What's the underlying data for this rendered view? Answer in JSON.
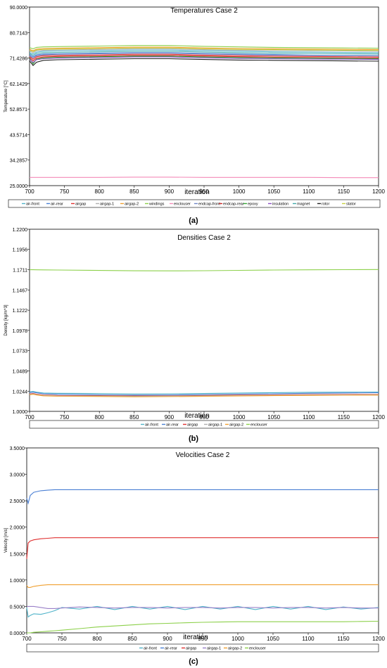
{
  "figure_labels": [
    "(a)",
    "(b)",
    "(c)"
  ],
  "chart_data": [
    {
      "type": "line",
      "title": "Temperatures Case 2",
      "xlabel": "iteration",
      "ylabel": "Temperature [°C]",
      "xlim": [
        700,
        1200
      ],
      "ylim": [
        25.0,
        90.0
      ],
      "x_ticks": [
        "700",
        "750",
        "800",
        "850",
        "900",
        "950",
        "1000",
        "1050",
        "1100",
        "1150",
        "1200"
      ],
      "y_ticks": [
        "25.0000",
        "34.2857",
        "43.5714",
        "52.8571",
        "62.1429",
        "71.4286",
        "80.7143",
        "90.0000"
      ],
      "legend_position": "bottom",
      "x": [
        700,
        705,
        710,
        720,
        740,
        800,
        850,
        900,
        950,
        1000,
        1050,
        1100,
        1150,
        1200
      ],
      "series": [
        {
          "name": "air-front",
          "color": "#4fb3c9",
          "values": [
            73.4,
            72.9,
            73.6,
            73.9,
            74.0,
            74.2,
            74.4,
            74.4,
            74.1,
            73.9,
            73.7,
            73.6,
            73.5,
            73.4
          ]
        },
        {
          "name": "air-rear",
          "color": "#4a7fd4",
          "values": [
            72.6,
            71.9,
            72.6,
            72.9,
            73.0,
            73.2,
            73.4,
            73.4,
            73.1,
            72.9,
            72.7,
            72.5,
            72.4,
            72.3
          ]
        },
        {
          "name": "airgap",
          "color": "#e03030",
          "values": [
            72.0,
            71.0,
            71.9,
            72.3,
            72.4,
            72.6,
            72.8,
            72.8,
            72.5,
            72.3,
            72.1,
            72.0,
            71.9,
            71.8
          ]
        },
        {
          "name": "airgap-1",
          "color": "#b0b0b0",
          "values": [
            74.0,
            73.4,
            74.1,
            74.3,
            74.4,
            74.6,
            74.8,
            74.8,
            74.5,
            74.3,
            74.2,
            74.1,
            74.0,
            73.9
          ]
        },
        {
          "name": "airgap-2",
          "color": "#f0a030",
          "values": [
            74.6,
            74.1,
            74.7,
            74.9,
            75.0,
            75.2,
            75.4,
            75.4,
            75.1,
            74.9,
            74.8,
            74.7,
            74.6,
            74.5
          ]
        },
        {
          "name": "windings",
          "color": "#8cd04a",
          "values": [
            75.2,
            74.8,
            75.3,
            75.5,
            75.6,
            75.8,
            76.0,
            76.0,
            75.7,
            75.5,
            75.3,
            75.2,
            75.1,
            75.0
          ]
        },
        {
          "name": "enclouser",
          "color": "#f48ab8",
          "values": [
            28.0,
            28.0,
            28.0,
            28.0,
            28.0,
            28.0,
            28.1,
            28.1,
            28.0,
            28.0,
            28.0,
            28.0,
            27.9,
            27.9
          ]
        },
        {
          "name": "endcap-front",
          "color": "#6f86c6",
          "values": [
            72.2,
            71.5,
            72.3,
            72.6,
            72.8,
            73.0,
            73.2,
            73.2,
            72.9,
            72.7,
            72.5,
            72.4,
            72.3,
            72.2
          ]
        },
        {
          "name": "endcap-rear",
          "color": "#cc2a2a",
          "values": [
            71.6,
            70.4,
            71.4,
            71.8,
            72.0,
            72.2,
            72.4,
            72.4,
            72.1,
            71.9,
            71.7,
            71.6,
            71.5,
            71.4
          ]
        },
        {
          "name": "epoxy",
          "color": "#34a834",
          "values": [
            71.4,
            69.3,
            71.0,
            71.5,
            71.7,
            71.9,
            72.1,
            72.1,
            71.8,
            71.6,
            71.5,
            71.4,
            71.3,
            71.2
          ]
        },
        {
          "name": "insulation",
          "color": "#8a4fc4",
          "values": [
            71.0,
            69.8,
            70.8,
            71.2,
            71.4,
            71.6,
            71.8,
            71.8,
            71.5,
            71.3,
            71.2,
            71.1,
            71.0,
            70.9
          ]
        },
        {
          "name": "magnet",
          "color": "#40a8a8",
          "values": [
            73.0,
            72.4,
            73.1,
            73.4,
            73.5,
            73.7,
            73.9,
            73.9,
            73.6,
            73.4,
            73.2,
            73.1,
            73.0,
            72.9
          ]
        },
        {
          "name": "rotor",
          "color": "#222222",
          "values": [
            70.4,
            68.7,
            69.9,
            70.6,
            70.8,
            71.0,
            71.2,
            71.2,
            70.9,
            70.7,
            70.6,
            70.5,
            70.4,
            70.3
          ]
        },
        {
          "name": "stator",
          "color": "#c8d040",
          "values": [
            74.3,
            73.8,
            74.4,
            74.6,
            74.7,
            74.9,
            75.1,
            75.1,
            74.8,
            74.6,
            74.5,
            74.4,
            74.3,
            74.2
          ]
        }
      ]
    },
    {
      "type": "line",
      "title": "Densities Case 2",
      "xlabel": "iteration",
      "ylabel": "Density [kg/m^3]",
      "xlim": [
        700,
        1200
      ],
      "ylim": [
        1.0,
        1.22
      ],
      "x_ticks": [
        "700",
        "750",
        "800",
        "850",
        "900",
        "950",
        "1000",
        "1050",
        "1100",
        "1150",
        "1200"
      ],
      "y_ticks": [
        "1.0000",
        "1.0244",
        "1.0489",
        "1.0733",
        "1.0978",
        "1.1222",
        "1.1467",
        "1.1711",
        "1.1956",
        "1.2200"
      ],
      "legend_position": "bottom",
      "x": [
        700,
        705,
        710,
        720,
        740,
        800,
        850,
        900,
        950,
        1000,
        1050,
        1100,
        1150,
        1200
      ],
      "series": [
        {
          "name": "air-front",
          "color": "#4fb3c9",
          "values": [
            1.0235,
            1.024,
            1.0232,
            1.0222,
            1.0218,
            1.0215,
            1.021,
            1.0212,
            1.0216,
            1.0222,
            1.0226,
            1.023,
            1.0232,
            1.0234
          ]
        },
        {
          "name": "air-rear",
          "color": "#4a7fd4",
          "values": [
            1.0228,
            1.0232,
            1.0224,
            1.0212,
            1.0206,
            1.02,
            1.0196,
            1.0198,
            1.0202,
            1.0208,
            1.0213,
            1.0218,
            1.0222,
            1.0225
          ]
        },
        {
          "name": "airgap",
          "color": "#e03030",
          "values": [
            1.021,
            1.0216,
            1.0208,
            1.0197,
            1.0192,
            1.019,
            1.0186,
            1.0188,
            1.0192,
            1.0196,
            1.02,
            1.0202,
            1.0204,
            1.0205
          ]
        },
        {
          "name": "airgap-1",
          "color": "#b0b0b0",
          "values": [
            1.0205,
            1.0211,
            1.0203,
            1.0193,
            1.0188,
            1.0186,
            1.0182,
            1.0184,
            1.0188,
            1.0191,
            1.0195,
            1.0198,
            1.02,
            1.0201
          ]
        },
        {
          "name": "airgap-2",
          "color": "#f0a030",
          "values": [
            1.02,
            1.0206,
            1.0198,
            1.0188,
            1.0183,
            1.018,
            1.0176,
            1.0178,
            1.0182,
            1.0186,
            1.019,
            1.0193,
            1.0195,
            1.0196
          ]
        },
        {
          "name": "enclouser",
          "color": "#8cd04a",
          "values": [
            1.1711,
            1.1711,
            1.171,
            1.1709,
            1.1707,
            1.1702,
            1.1698,
            1.1697,
            1.1699,
            1.1703,
            1.1707,
            1.171,
            1.1712,
            1.1713
          ]
        }
      ]
    },
    {
      "type": "line",
      "title": "Velocities Case 2",
      "xlabel": "iteration",
      "ylabel": "Velocity [m/s]",
      "xlim": [
        700,
        1200
      ],
      "ylim": [
        0.0,
        3.5
      ],
      "x_ticks": [
        "700",
        "750",
        "800",
        "850",
        "900",
        "950",
        "1000",
        "1050",
        "1100",
        "1150",
        "1200"
      ],
      "y_ticks": [
        "0.0000",
        "0.5000",
        "1.0000",
        "1.5000",
        "2.0000",
        "2.5000",
        "3.0000",
        "3.5000"
      ],
      "legend_position": "bottom",
      "x": [
        700,
        702,
        705,
        710,
        720,
        730,
        740,
        750,
        775,
        800,
        825,
        850,
        875,
        900,
        925,
        950,
        975,
        1000,
        1025,
        1050,
        1075,
        1100,
        1125,
        1150,
        1175,
        1200
      ],
      "series": [
        {
          "name": "air-front",
          "color": "#4fb3c9",
          "values": [
            0.48,
            0.3,
            0.33,
            0.36,
            0.35,
            0.38,
            0.42,
            0.48,
            0.45,
            0.5,
            0.44,
            0.5,
            0.45,
            0.5,
            0.44,
            0.5,
            0.45,
            0.5,
            0.44,
            0.5,
            0.45,
            0.5,
            0.44,
            0.49,
            0.45,
            0.48
          ]
        },
        {
          "name": "air-rear",
          "color": "#4a7fd4",
          "values": [
            2.55,
            2.45,
            2.6,
            2.66,
            2.69,
            2.7,
            2.71,
            2.71,
            2.71,
            2.71,
            2.71,
            2.71,
            2.71,
            2.71,
            2.71,
            2.71,
            2.71,
            2.71,
            2.71,
            2.71,
            2.71,
            2.71,
            2.71,
            2.71,
            2.71,
            2.71
          ]
        },
        {
          "name": "airgap",
          "color": "#e03030",
          "values": [
            1.4,
            1.7,
            1.74,
            1.76,
            1.78,
            1.79,
            1.8,
            1.8,
            1.8,
            1.8,
            1.8,
            1.8,
            1.8,
            1.8,
            1.8,
            1.8,
            1.8,
            1.8,
            1.8,
            1.8,
            1.8,
            1.8,
            1.8,
            1.8,
            1.8,
            1.8
          ]
        },
        {
          "name": "airgap-1",
          "color": "#9a80c8",
          "values": [
            0.5,
            0.5,
            0.5,
            0.5,
            0.48,
            0.46,
            0.46,
            0.47,
            0.49,
            0.48,
            0.47,
            0.48,
            0.48,
            0.47,
            0.48,
            0.48,
            0.47,
            0.48,
            0.48,
            0.47,
            0.48,
            0.48,
            0.47,
            0.48,
            0.47,
            0.47
          ]
        },
        {
          "name": "airgap-2",
          "color": "#f0a030",
          "values": [
            0.9,
            0.86,
            0.86,
            0.88,
            0.9,
            0.91,
            0.91,
            0.91,
            0.91,
            0.91,
            0.91,
            0.91,
            0.91,
            0.91,
            0.91,
            0.91,
            0.91,
            0.91,
            0.91,
            0.91,
            0.91,
            0.91,
            0.91,
            0.91,
            0.91,
            0.91
          ]
        },
        {
          "name": "enclouser",
          "color": "#8cd04a",
          "values": [
            0.0,
            0.0,
            0.0,
            0.01,
            0.02,
            0.03,
            0.04,
            0.05,
            0.08,
            0.11,
            0.13,
            0.15,
            0.17,
            0.18,
            0.19,
            0.2,
            0.205,
            0.21,
            0.21,
            0.21,
            0.21,
            0.21,
            0.21,
            0.21,
            0.215,
            0.22
          ]
        }
      ]
    }
  ]
}
